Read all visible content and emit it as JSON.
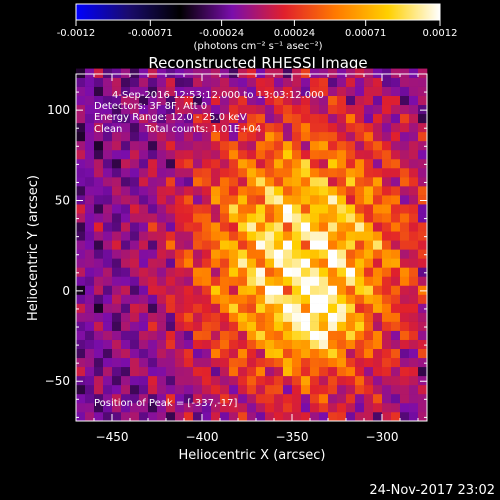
{
  "chart_data": {
    "type": "heatmap",
    "title": "Reconstructed RHESSI Image",
    "xlabel": "Heliocentric X (arcsec)",
    "ylabel": "Heliocentric Y (arcsec)",
    "xlim": [
      -470,
      -275
    ],
    "ylim": [
      -72,
      120
    ],
    "x_ticks": [
      -450,
      -400,
      -350,
      -300
    ],
    "y_ticks": [
      -50,
      0,
      50,
      100
    ],
    "colorbar": {
      "range": [
        -0.0012,
        0.0012
      ],
      "ticks": [
        "-0.0012",
        "-0.00071",
        "-0.00024",
        "0.00024",
        "0.00071",
        "0.0012"
      ],
      "tick_values": [
        -0.0012,
        -0.00071,
        -0.00024,
        0.00024,
        0.00071,
        0.0012
      ],
      "unit_label": "(photons cm⁻² s⁻¹ asec⁻²)",
      "colormap": [
        "#0000ff",
        "#1a0b6e",
        "#000000",
        "#7a0dab",
        "#e0202c",
        "#ff7a00",
        "#ffd000",
        "#ffffff"
      ]
    },
    "annotations": {
      "time": "4-Sep-2016 12:53:12.000 to 13:03:12.000",
      "detectors": "Detectors: 3F 8F, Att 0",
      "energy": "Energy Range: 12.0 - 25.0 keV",
      "method": "Clean",
      "counts": "Total counts: 1.01E+04",
      "peak": "Position of Peak = [-337,-17]"
    },
    "peak_position": [
      -337,
      -17
    ],
    "emission_center": [
      -345,
      20
    ],
    "grid": false
  },
  "footer": {
    "date": "24-Nov-2017 23:02"
  }
}
